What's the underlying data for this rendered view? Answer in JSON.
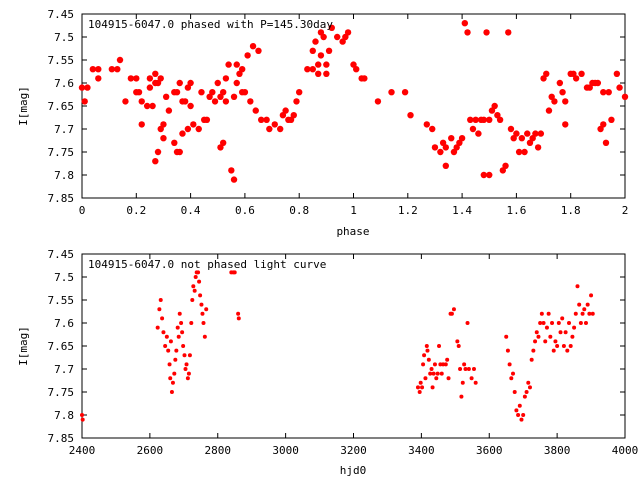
{
  "chart_data": [
    {
      "type": "scatter",
      "title": "104915-6047.0 phased with P=145.30day",
      "xlabel": "phase",
      "ylabel": "I[mag]",
      "xlim": [
        0,
        2
      ],
      "ylim": [
        7.85,
        7.45
      ],
      "y_inverted": true,
      "grid": false,
      "marker": "filled-circle-large",
      "color": "#ff0000",
      "xticks": [
        0,
        0.2,
        0.4,
        0.6,
        0.8,
        1,
        1.2,
        1.4,
        1.6,
        1.8,
        2
      ],
      "xtick_labels": [
        "0",
        "0.2",
        "0.4",
        "0.6",
        "0.8",
        "1",
        "1.2",
        "1.4",
        "1.6",
        "1.8",
        "2"
      ],
      "yticks": [
        7.45,
        7.5,
        7.55,
        7.6,
        7.65,
        7.7,
        7.75,
        7.8,
        7.85
      ],
      "ytick_labels": [
        "7.45",
        "7.5",
        "7.55",
        "7.6",
        "7.65",
        "7.7",
        "7.75",
        "7.8",
        "7.85"
      ],
      "points": [
        [
          0.0,
          7.61
        ],
        [
          0.01,
          7.64
        ],
        [
          0.02,
          7.61
        ],
        [
          0.04,
          7.57
        ],
        [
          0.06,
          7.59
        ],
        [
          0.06,
          7.57
        ],
        [
          0.11,
          7.57
        ],
        [
          0.13,
          7.57
        ],
        [
          0.14,
          7.55
        ],
        [
          0.16,
          7.64
        ],
        [
          0.18,
          7.59
        ],
        [
          0.2,
          7.62
        ],
        [
          0.2,
          7.59
        ],
        [
          0.21,
          7.62
        ],
        [
          0.22,
          7.69
        ],
        [
          0.22,
          7.64
        ],
        [
          0.24,
          7.65
        ],
        [
          0.25,
          7.61
        ],
        [
          0.25,
          7.59
        ],
        [
          0.26,
          7.65
        ],
        [
          0.27,
          7.58
        ],
        [
          0.27,
          7.6
        ],
        [
          0.27,
          7.77
        ],
        [
          0.28,
          7.75
        ],
        [
          0.28,
          7.6
        ],
        [
          0.29,
          7.59
        ],
        [
          0.29,
          7.7
        ],
        [
          0.3,
          7.69
        ],
        [
          0.3,
          7.72
        ],
        [
          0.31,
          7.63
        ],
        [
          0.32,
          7.66
        ],
        [
          0.34,
          7.73
        ],
        [
          0.34,
          7.62
        ],
        [
          0.35,
          7.62
        ],
        [
          0.35,
          7.75
        ],
        [
          0.36,
          7.6
        ],
        [
          0.36,
          7.75
        ],
        [
          0.37,
          7.71
        ],
        [
          0.37,
          7.64
        ],
        [
          0.38,
          7.64
        ],
        [
          0.39,
          7.7
        ],
        [
          0.39,
          7.61
        ],
        [
          0.4,
          7.65
        ],
        [
          0.4,
          7.6
        ],
        [
          0.41,
          7.69
        ],
        [
          0.43,
          7.7
        ],
        [
          0.44,
          7.62
        ],
        [
          0.45,
          7.68
        ],
        [
          0.46,
          7.68
        ],
        [
          0.47,
          7.63
        ],
        [
          0.48,
          7.62
        ],
        [
          0.49,
          7.64
        ],
        [
          0.5,
          7.6
        ],
        [
          0.51,
          7.63
        ],
        [
          0.51,
          7.74
        ],
        [
          0.52,
          7.73
        ],
        [
          0.52,
          7.62
        ],
        [
          0.53,
          7.59
        ],
        [
          0.53,
          7.64
        ],
        [
          0.54,
          7.56
        ],
        [
          0.55,
          7.79
        ],
        [
          0.56,
          7.81
        ],
        [
          0.56,
          7.63
        ],
        [
          0.57,
          7.6
        ],
        [
          0.57,
          7.56
        ],
        [
          0.58,
          7.58
        ],
        [
          0.59,
          7.62
        ],
        [
          0.59,
          7.57
        ],
        [
          0.6,
          7.62
        ],
        [
          0.61,
          7.54
        ],
        [
          0.62,
          7.64
        ],
        [
          0.63,
          7.52
        ],
        [
          0.64,
          7.66
        ],
        [
          0.65,
          7.53
        ],
        [
          0.66,
          7.68
        ],
        [
          0.68,
          7.68
        ],
        [
          0.69,
          7.7
        ],
        [
          0.71,
          7.69
        ],
        [
          0.73,
          7.7
        ],
        [
          0.74,
          7.67
        ],
        [
          0.75,
          7.66
        ],
        [
          0.76,
          7.68
        ],
        [
          0.77,
          7.68
        ],
        [
          0.78,
          7.67
        ],
        [
          0.79,
          7.64
        ],
        [
          0.8,
          7.62
        ],
        [
          0.83,
          7.57
        ],
        [
          0.85,
          7.57
        ],
        [
          0.85,
          7.53
        ],
        [
          0.86,
          7.51
        ],
        [
          0.87,
          7.56
        ],
        [
          0.87,
          7.58
        ],
        [
          0.88,
          7.49
        ],
        [
          0.88,
          7.54
        ],
        [
          0.89,
          7.5
        ],
        [
          0.9,
          7.56
        ],
        [
          0.9,
          7.58
        ],
        [
          0.91,
          7.53
        ],
        [
          0.92,
          7.48
        ],
        [
          0.94,
          7.5
        ],
        [
          0.96,
          7.51
        ],
        [
          0.97,
          7.5
        ],
        [
          0.98,
          7.49
        ],
        [
          1.0,
          7.56
        ],
        [
          1.01,
          7.57
        ],
        [
          1.03,
          7.59
        ],
        [
          1.04,
          7.59
        ],
        [
          1.09,
          7.64
        ],
        [
          1.14,
          7.62
        ],
        [
          1.19,
          7.62
        ],
        [
          1.21,
          7.67
        ],
        [
          1.27,
          7.69
        ],
        [
          1.29,
          7.7
        ],
        [
          1.3,
          7.74
        ],
        [
          1.32,
          7.75
        ],
        [
          1.33,
          7.73
        ],
        [
          1.34,
          7.74
        ],
        [
          1.34,
          7.78
        ],
        [
          1.36,
          7.72
        ],
        [
          1.37,
          7.75
        ],
        [
          1.38,
          7.74
        ],
        [
          1.39,
          7.73
        ],
        [
          1.4,
          7.72
        ],
        [
          1.41,
          7.47
        ],
        [
          1.42,
          7.49
        ],
        [
          1.43,
          7.68
        ],
        [
          1.44,
          7.7
        ],
        [
          1.45,
          7.68
        ],
        [
          1.46,
          7.71
        ],
        [
          1.47,
          7.68
        ],
        [
          1.48,
          7.68
        ],
        [
          1.48,
          7.8
        ],
        [
          1.49,
          7.49
        ],
        [
          1.5,
          7.68
        ],
        [
          1.5,
          7.8
        ],
        [
          1.51,
          7.66
        ],
        [
          1.52,
          7.65
        ],
        [
          1.53,
          7.67
        ],
        [
          1.54,
          7.68
        ],
        [
          1.55,
          7.79
        ],
        [
          1.56,
          7.78
        ],
        [
          1.57,
          7.49
        ],
        [
          1.58,
          7.7
        ],
        [
          1.59,
          7.72
        ],
        [
          1.6,
          7.71
        ],
        [
          1.61,
          7.75
        ],
        [
          1.62,
          7.72
        ],
        [
          1.63,
          7.75
        ],
        [
          1.64,
          7.71
        ],
        [
          1.65,
          7.73
        ],
        [
          1.66,
          7.72
        ],
        [
          1.67,
          7.71
        ],
        [
          1.68,
          7.74
        ],
        [
          1.69,
          7.71
        ],
        [
          1.7,
          7.59
        ],
        [
          1.71,
          7.58
        ],
        [
          1.72,
          7.66
        ],
        [
          1.73,
          7.63
        ],
        [
          1.74,
          7.64
        ],
        [
          1.76,
          7.6
        ],
        [
          1.77,
          7.62
        ],
        [
          1.78,
          7.69
        ],
        [
          1.78,
          7.64
        ],
        [
          1.8,
          7.58
        ],
        [
          1.81,
          7.58
        ],
        [
          1.82,
          7.59
        ],
        [
          1.84,
          7.58
        ],
        [
          1.86,
          7.61
        ],
        [
          1.87,
          7.61
        ],
        [
          1.88,
          7.6
        ],
        [
          1.89,
          7.6
        ],
        [
          1.9,
          7.6
        ],
        [
          1.91,
          7.7
        ],
        [
          1.92,
          7.62
        ],
        [
          1.92,
          7.69
        ],
        [
          1.93,
          7.73
        ],
        [
          1.94,
          7.62
        ],
        [
          1.95,
          7.68
        ],
        [
          1.97,
          7.58
        ],
        [
          1.98,
          7.61
        ],
        [
          2.0,
          7.63
        ]
      ]
    },
    {
      "type": "scatter",
      "title": "104915-6047.0 not phased light curve",
      "xlabel": "hjd0",
      "ylabel": "I[mag]",
      "xlim": [
        2400,
        4000
      ],
      "ylim": [
        7.85,
        7.45
      ],
      "y_inverted": true,
      "grid": false,
      "marker": "filled-circle-small",
      "color": "#ff0000",
      "xticks": [
        2400,
        2600,
        2800,
        3000,
        3200,
        3400,
        3600,
        3800,
        4000
      ],
      "xtick_labels": [
        "2400",
        "2600",
        "2800",
        "3000",
        "3200",
        "3400",
        "3600",
        "3800",
        "4000"
      ],
      "yticks": [
        7.45,
        7.5,
        7.55,
        7.6,
        7.65,
        7.7,
        7.75,
        7.8,
        7.85
      ],
      "ytick_labels": [
        "7.45",
        "7.5",
        "7.55",
        "7.6",
        "7.65",
        "7.7",
        "7.75",
        "7.8",
        "7.85"
      ],
      "points": [
        [
          2400,
          7.8
        ],
        [
          2402,
          7.81
        ],
        [
          2623,
          7.61
        ],
        [
          2628,
          7.57
        ],
        [
          2632,
          7.55
        ],
        [
          2636,
          7.59
        ],
        [
          2640,
          7.62
        ],
        [
          2645,
          7.65
        ],
        [
          2650,
          7.63
        ],
        [
          2654,
          7.66
        ],
        [
          2658,
          7.69
        ],
        [
          2660,
          7.72
        ],
        [
          2662,
          7.64
        ],
        [
          2665,
          7.75
        ],
        [
          2668,
          7.73
        ],
        [
          2672,
          7.71
        ],
        [
          2675,
          7.68
        ],
        [
          2678,
          7.66
        ],
        [
          2682,
          7.61
        ],
        [
          2685,
          7.63
        ],
        [
          2688,
          7.58
        ],
        [
          2692,
          7.6
        ],
        [
          2695,
          7.62
        ],
        [
          2698,
          7.65
        ],
        [
          2702,
          7.67
        ],
        [
          2705,
          7.7
        ],
        [
          2708,
          7.69
        ],
        [
          2712,
          7.72
        ],
        [
          2715,
          7.71
        ],
        [
          2718,
          7.67
        ],
        [
          2722,
          7.6
        ],
        [
          2725,
          7.55
        ],
        [
          2728,
          7.52
        ],
        [
          2732,
          7.53
        ],
        [
          2735,
          7.5
        ],
        [
          2738,
          7.49
        ],
        [
          2742,
          7.49
        ],
        [
          2745,
          7.51
        ],
        [
          2748,
          7.54
        ],
        [
          2752,
          7.56
        ],
        [
          2755,
          7.58
        ],
        [
          2758,
          7.6
        ],
        [
          2762,
          7.63
        ],
        [
          2766,
          7.57
        ],
        [
          2840,
          7.49
        ],
        [
          2846,
          7.49
        ],
        [
          2850,
          7.49
        ],
        [
          2860,
          7.58
        ],
        [
          2862,
          7.59
        ],
        [
          3390,
          7.74
        ],
        [
          3395,
          7.75
        ],
        [
          3398,
          7.73
        ],
        [
          3402,
          7.74
        ],
        [
          3405,
          7.69
        ],
        [
          3408,
          7.67
        ],
        [
          3412,
          7.72
        ],
        [
          3416,
          7.65
        ],
        [
          3418,
          7.66
        ],
        [
          3422,
          7.68
        ],
        [
          3426,
          7.71
        ],
        [
          3430,
          7.7
        ],
        [
          3433,
          7.74
        ],
        [
          3436,
          7.71
        ],
        [
          3440,
          7.69
        ],
        [
          3444,
          7.72
        ],
        [
          3448,
          7.71
        ],
        [
          3452,
          7.65
        ],
        [
          3456,
          7.69
        ],
        [
          3460,
          7.71
        ],
        [
          3464,
          7.69
        ],
        [
          3472,
          7.69
        ],
        [
          3476,
          7.68
        ],
        [
          3480,
          7.72
        ],
        [
          3486,
          7.58
        ],
        [
          3490,
          7.58
        ],
        [
          3496,
          7.57
        ],
        [
          3506,
          7.64
        ],
        [
          3510,
          7.65
        ],
        [
          3514,
          7.7
        ],
        [
          3518,
          7.76
        ],
        [
          3522,
          7.73
        ],
        [
          3526,
          7.69
        ],
        [
          3530,
          7.7
        ],
        [
          3536,
          7.6
        ],
        [
          3540,
          7.7
        ],
        [
          3548,
          7.72
        ],
        [
          3555,
          7.7
        ],
        [
          3560,
          7.73
        ],
        [
          3650,
          7.63
        ],
        [
          3655,
          7.66
        ],
        [
          3660,
          7.69
        ],
        [
          3665,
          7.72
        ],
        [
          3670,
          7.71
        ],
        [
          3675,
          7.75
        ],
        [
          3680,
          7.79
        ],
        [
          3685,
          7.8
        ],
        [
          3690,
          7.78
        ],
        [
          3695,
          7.81
        ],
        [
          3700,
          7.8
        ],
        [
          3705,
          7.76
        ],
        [
          3710,
          7.75
        ],
        [
          3715,
          7.73
        ],
        [
          3720,
          7.74
        ],
        [
          3725,
          7.68
        ],
        [
          3730,
          7.66
        ],
        [
          3735,
          7.64
        ],
        [
          3740,
          7.62
        ],
        [
          3745,
          7.63
        ],
        [
          3750,
          7.6
        ],
        [
          3755,
          7.58
        ],
        [
          3760,
          7.6
        ],
        [
          3765,
          7.64
        ],
        [
          3770,
          7.61
        ],
        [
          3775,
          7.58
        ],
        [
          3780,
          7.63
        ],
        [
          3785,
          7.6
        ],
        [
          3790,
          7.66
        ],
        [
          3795,
          7.64
        ],
        [
          3800,
          7.65
        ],
        [
          3805,
          7.6
        ],
        [
          3810,
          7.62
        ],
        [
          3815,
          7.59
        ],
        [
          3820,
          7.65
        ],
        [
          3825,
          7.62
        ],
        [
          3830,
          7.66
        ],
        [
          3835,
          7.6
        ],
        [
          3840,
          7.65
        ],
        [
          3845,
          7.63
        ],
        [
          3850,
          7.61
        ],
        [
          3855,
          7.58
        ],
        [
          3860,
          7.52
        ],
        [
          3865,
          7.56
        ],
        [
          3870,
          7.6
        ],
        [
          3875,
          7.58
        ],
        [
          3880,
          7.57
        ],
        [
          3885,
          7.6
        ],
        [
          3890,
          7.56
        ],
        [
          3895,
          7.58
        ],
        [
          3900,
          7.54
        ],
        [
          3905,
          7.58
        ]
      ]
    }
  ]
}
